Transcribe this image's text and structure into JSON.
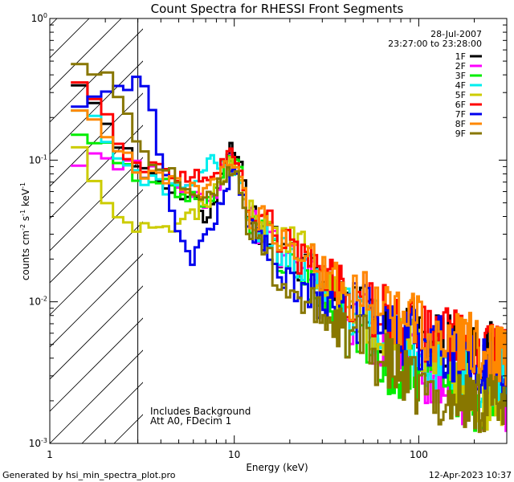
{
  "chart_data": {
    "type": "line",
    "title": "Count Spectra for RHESSI Front Segments",
    "xlabel": "Energy (keV)",
    "ylabel_main": "counts cm",
    "ylabel_exp1": "-2",
    "ylabel_mid": " s",
    "ylabel_exp2": "-1",
    "ylabel_mid2": " keV",
    "ylabel_exp3": "-1",
    "xscale": "log",
    "yscale": "log",
    "xlim": [
      1,
      300
    ],
    "ylim": [
      0.001,
      1
    ],
    "x_ticks": [
      {
        "value": 1,
        "label": "1"
      },
      {
        "value": 10,
        "label": "10"
      },
      {
        "value": 100,
        "label": "100"
      }
    ],
    "y_ticks": [
      {
        "value": 1,
        "base": "10",
        "exp": "0"
      },
      {
        "value": 0.1,
        "base": "10",
        "exp": "-1"
      },
      {
        "value": 0.01,
        "base": "10",
        "exp": "-2"
      },
      {
        "value": 0.001,
        "base": "10",
        "exp": "-3"
      }
    ],
    "date": "28-Jul-2007",
    "time_range": "23:27:00 to 23:28:00",
    "annotations": [
      "Includes Background",
      "Att A0, FDecim 1"
    ],
    "shaded_region_keV": [
      1,
      3
    ],
    "legend_position": "top-right",
    "series": [
      {
        "name": "1F",
        "color": "#000000",
        "knots": [
          [
            1.3,
            0.5
          ],
          [
            1.6,
            0.3
          ],
          [
            2,
            0.2
          ],
          [
            2.5,
            0.12
          ],
          [
            3,
            0.09
          ],
          [
            3.5,
            0.085
          ],
          [
            4,
            0.07
          ],
          [
            5,
            0.06
          ],
          [
            6,
            0.055
          ],
          [
            7,
            0.04
          ],
          [
            8,
            0.05
          ],
          [
            9,
            0.11
          ],
          [
            10,
            0.13
          ],
          [
            11,
            0.09
          ],
          [
            12,
            0.04
          ],
          [
            15,
            0.03
          ],
          [
            20,
            0.02
          ],
          [
            30,
            0.013
          ],
          [
            50,
            0.008
          ],
          [
            80,
            0.006
          ],
          [
            120,
            0.005
          ],
          [
            200,
            0.005
          ],
          [
            280,
            0.004
          ]
        ],
        "seed": 11
      },
      {
        "name": "2F",
        "color": "#ff00ff",
        "knots": [
          [
            1.3,
            0.11
          ],
          [
            1.6,
            0.1
          ],
          [
            2,
            0.1
          ],
          [
            2.5,
            0.095
          ],
          [
            3,
            0.09
          ],
          [
            4,
            0.075
          ],
          [
            5,
            0.065
          ],
          [
            6,
            0.06
          ],
          [
            7,
            0.05
          ],
          [
            8,
            0.06
          ],
          [
            9,
            0.1
          ],
          [
            10,
            0.11
          ],
          [
            11,
            0.08
          ],
          [
            12,
            0.04
          ],
          [
            15,
            0.03
          ],
          [
            20,
            0.02
          ],
          [
            30,
            0.012
          ],
          [
            50,
            0.007
          ],
          [
            80,
            0.004
          ],
          [
            120,
            0.003
          ],
          [
            200,
            0.002
          ],
          [
            280,
            0.002
          ]
        ],
        "seed": 22
      },
      {
        "name": "3F",
        "color": "#00ee00",
        "knots": [
          [
            1.3,
            0.2
          ],
          [
            1.6,
            0.15
          ],
          [
            2,
            0.12
          ],
          [
            2.5,
            0.1
          ],
          [
            3,
            0.075
          ],
          [
            4,
            0.07
          ],
          [
            5,
            0.06
          ],
          [
            6,
            0.055
          ],
          [
            7,
            0.05
          ],
          [
            8,
            0.06
          ],
          [
            9,
            0.09
          ],
          [
            10,
            0.11
          ],
          [
            11,
            0.08
          ],
          [
            12,
            0.04
          ],
          [
            15,
            0.028
          ],
          [
            20,
            0.018
          ],
          [
            30,
            0.01
          ],
          [
            50,
            0.005
          ],
          [
            80,
            0.003
          ],
          [
            120,
            0.003
          ],
          [
            200,
            0.002
          ],
          [
            280,
            0.002
          ]
        ],
        "seed": 33
      },
      {
        "name": "4F",
        "color": "#00eeee",
        "knots": [
          [
            1.3,
            0.3
          ],
          [
            1.6,
            0.22
          ],
          [
            2,
            0.15
          ],
          [
            2.5,
            0.1
          ],
          [
            3,
            0.08
          ],
          [
            4,
            0.065
          ],
          [
            5,
            0.06
          ],
          [
            6,
            0.07
          ],
          [
            7,
            0.09
          ],
          [
            8,
            0.1
          ],
          [
            9,
            0.08
          ],
          [
            10,
            0.09
          ],
          [
            11,
            0.07
          ],
          [
            12,
            0.04
          ],
          [
            15,
            0.03
          ],
          [
            20,
            0.02
          ],
          [
            30,
            0.014
          ],
          [
            50,
            0.008
          ],
          [
            80,
            0.005
          ],
          [
            120,
            0.004
          ],
          [
            200,
            0.003
          ],
          [
            280,
            0.003
          ]
        ],
        "seed": 44
      },
      {
        "name": "5F",
        "color": "#cccc00",
        "knots": [
          [
            1.3,
            0.2
          ],
          [
            1.6,
            0.1
          ],
          [
            2,
            0.05
          ],
          [
            2.5,
            0.04
          ],
          [
            3,
            0.035
          ],
          [
            4,
            0.035
          ],
          [
            5,
            0.035
          ],
          [
            6,
            0.04
          ],
          [
            7,
            0.05
          ],
          [
            8,
            0.06
          ],
          [
            9,
            0.08
          ],
          [
            10,
            0.1
          ],
          [
            11,
            0.06
          ],
          [
            12,
            0.04
          ],
          [
            15,
            0.035
          ],
          [
            20,
            0.03
          ],
          [
            30,
            0.015
          ],
          [
            50,
            0.008
          ],
          [
            80,
            0.005
          ],
          [
            120,
            0.004
          ],
          [
            200,
            0.002
          ],
          [
            280,
            0.002
          ]
        ],
        "seed": 55
      },
      {
        "name": "6F",
        "color": "#ff0000",
        "knots": [
          [
            1.3,
            0.55
          ],
          [
            1.6,
            0.3
          ],
          [
            2,
            0.2
          ],
          [
            2.5,
            0.12
          ],
          [
            3,
            0.095
          ],
          [
            4,
            0.085
          ],
          [
            5,
            0.075
          ],
          [
            6,
            0.075
          ],
          [
            7,
            0.075
          ],
          [
            8,
            0.08
          ],
          [
            9,
            0.1
          ],
          [
            10,
            0.12
          ],
          [
            11,
            0.08
          ],
          [
            12,
            0.045
          ],
          [
            15,
            0.035
          ],
          [
            20,
            0.025
          ],
          [
            30,
            0.016
          ],
          [
            50,
            0.01
          ],
          [
            80,
            0.007
          ],
          [
            120,
            0.006
          ],
          [
            200,
            0.005
          ],
          [
            280,
            0.004
          ]
        ],
        "seed": 66
      },
      {
        "name": "7F",
        "color": "#0000ee",
        "knots": [
          [
            1.3,
            0.25
          ],
          [
            1.6,
            0.3
          ],
          [
            2,
            0.33
          ],
          [
            2.5,
            0.36
          ],
          [
            3,
            0.35
          ],
          [
            3.5,
            0.3
          ],
          [
            4,
            0.1
          ],
          [
            4.5,
            0.05
          ],
          [
            5,
            0.025
          ],
          [
            6,
            0.02
          ],
          [
            7,
            0.03
          ],
          [
            8,
            0.04
          ],
          [
            9,
            0.06
          ],
          [
            10,
            0.1
          ],
          [
            11,
            0.06
          ],
          [
            12,
            0.035
          ],
          [
            15,
            0.025
          ],
          [
            20,
            0.015
          ],
          [
            30,
            0.01
          ],
          [
            50,
            0.008
          ],
          [
            80,
            0.006
          ],
          [
            120,
            0.005
          ],
          [
            200,
            0.004
          ],
          [
            280,
            0.003
          ]
        ],
        "seed": 77
      },
      {
        "name": "8F",
        "color": "#ff8800",
        "knots": [
          [
            1.3,
            0.3
          ],
          [
            1.6,
            0.22
          ],
          [
            2,
            0.15
          ],
          [
            2.5,
            0.11
          ],
          [
            3,
            0.085
          ],
          [
            4,
            0.075
          ],
          [
            5,
            0.07
          ],
          [
            6,
            0.065
          ],
          [
            7,
            0.06
          ],
          [
            8,
            0.07
          ],
          [
            9,
            0.09
          ],
          [
            10,
            0.1
          ],
          [
            11,
            0.07
          ],
          [
            12,
            0.045
          ],
          [
            15,
            0.035
          ],
          [
            20,
            0.025
          ],
          [
            30,
            0.016
          ],
          [
            50,
            0.01
          ],
          [
            80,
            0.008
          ],
          [
            120,
            0.006
          ],
          [
            200,
            0.005
          ],
          [
            280,
            0.004
          ]
        ],
        "seed": 88
      },
      {
        "name": "9F",
        "color": "#887700",
        "knots": [
          [
            1.3,
            0.6
          ],
          [
            1.6,
            0.5
          ],
          [
            2,
            0.4
          ],
          [
            2.5,
            0.25
          ],
          [
            3,
            0.12
          ],
          [
            4,
            0.09
          ],
          [
            5,
            0.07
          ],
          [
            6,
            0.06
          ],
          [
            7,
            0.05
          ],
          [
            8,
            0.06
          ],
          [
            9,
            0.08
          ],
          [
            10,
            0.09
          ],
          [
            11,
            0.06
          ],
          [
            12,
            0.03
          ],
          [
            15,
            0.02
          ],
          [
            20,
            0.012
          ],
          [
            30,
            0.008
          ],
          [
            50,
            0.005
          ],
          [
            80,
            0.003
          ],
          [
            120,
            0.002
          ],
          [
            200,
            0.002
          ],
          [
            280,
            0.002
          ]
        ],
        "seed": 99
      }
    ]
  },
  "footer": {
    "generated_by": "Generated by hsi_min_spectra_plot.pro",
    "timestamp": "12-Apr-2023 10:37"
  }
}
